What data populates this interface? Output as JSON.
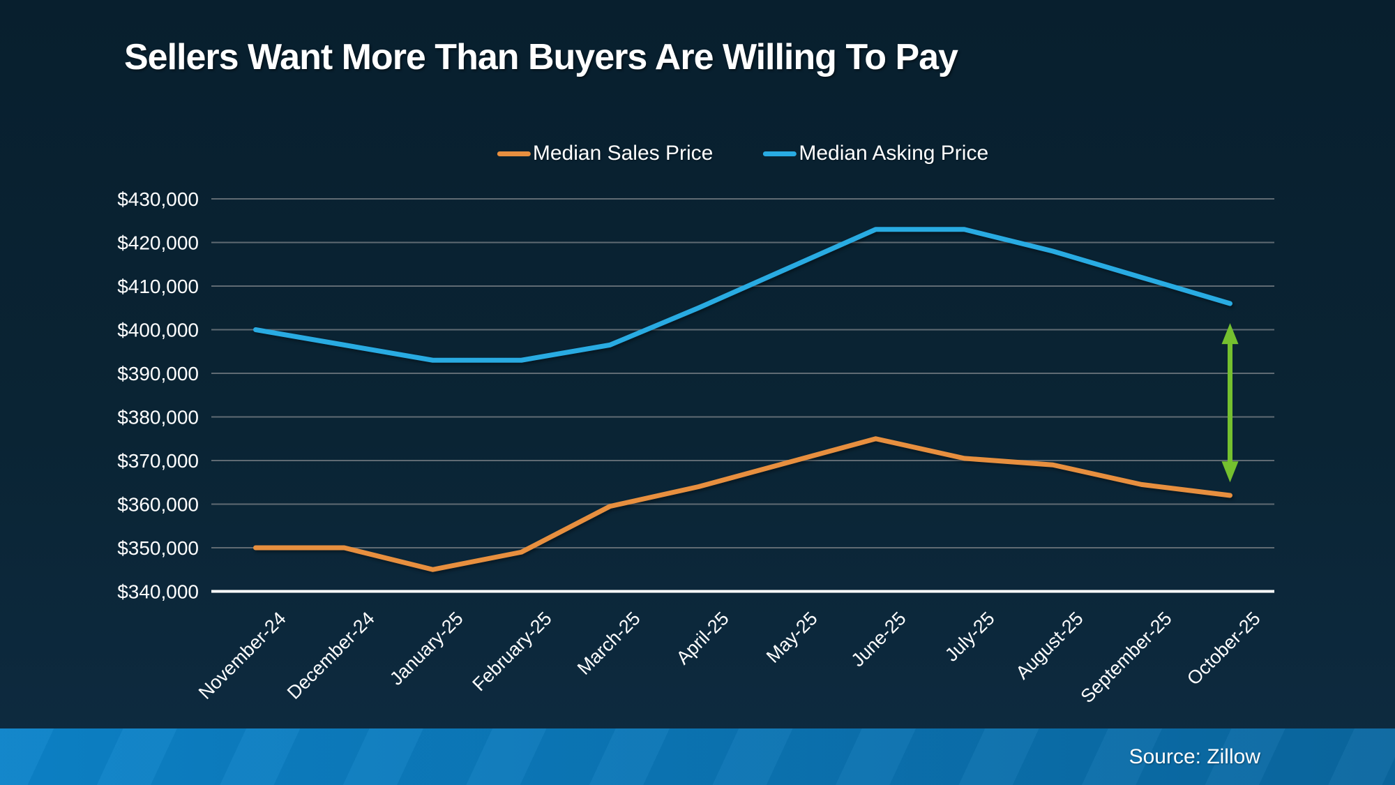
{
  "title": "Sellers Want More Than Buyers Are Willing To Pay",
  "source": "Source: Zillow",
  "legend": [
    {
      "label": "Median Sales Price",
      "color": "#E78F3F"
    },
    {
      "label": "Median Asking Price",
      "color": "#29ABE2"
    }
  ],
  "colors": {
    "background_top": "#081f2e",
    "background_bottom": "#0e2b41",
    "gridline": "#606B73",
    "axis_line": "#FFFFFF",
    "sales_line": "#E78F3F",
    "asking_line": "#29ABE2",
    "gap_arrow": "#75C02F",
    "bottom_bar_left": "#0C83C9",
    "bottom_bar_right": "#0A67A0",
    "text": "#FFFFFF"
  },
  "chart_data": {
    "type": "line",
    "title": "Sellers Want More Than Buyers Are Willing To Pay",
    "categories": [
      "November-24",
      "December-24",
      "January-25",
      "February-25",
      "March-25",
      "April-25",
      "May-25",
      "June-25",
      "July-25",
      "August-25",
      "September-25",
      "October-25"
    ],
    "series": [
      {
        "name": "Median Sales Price",
        "color": "#E78F3F",
        "values": [
          350000,
          350000,
          345000,
          349000,
          359500,
          364000,
          369500,
          375000,
          370500,
          369000,
          364500,
          362000
        ]
      },
      {
        "name": "Median Asking Price",
        "color": "#29ABE2",
        "values": [
          400000,
          396500,
          393000,
          393000,
          396500,
          405000,
          414000,
          423000,
          423000,
          418000,
          412000,
          406000
        ]
      }
    ],
    "ylim": [
      340000,
      430000
    ],
    "yticks": [
      430000,
      420000,
      410000,
      400000,
      390000,
      380000,
      370000,
      360000,
      350000,
      340000
    ],
    "ytick_labels": [
      "$430,000",
      "$420,000",
      "$410,000",
      "$400,000",
      "$390,000",
      "$380,000",
      "$370,000",
      "$360,000",
      "$350,000",
      "$340,000"
    ],
    "grid": true,
    "legend_position": "top",
    "annotation_arrow": {
      "x_category": "October-25",
      "from_value": 401500,
      "to_value": 365000,
      "color": "#75C02F",
      "meaning": "gap between asking and sales price"
    }
  }
}
